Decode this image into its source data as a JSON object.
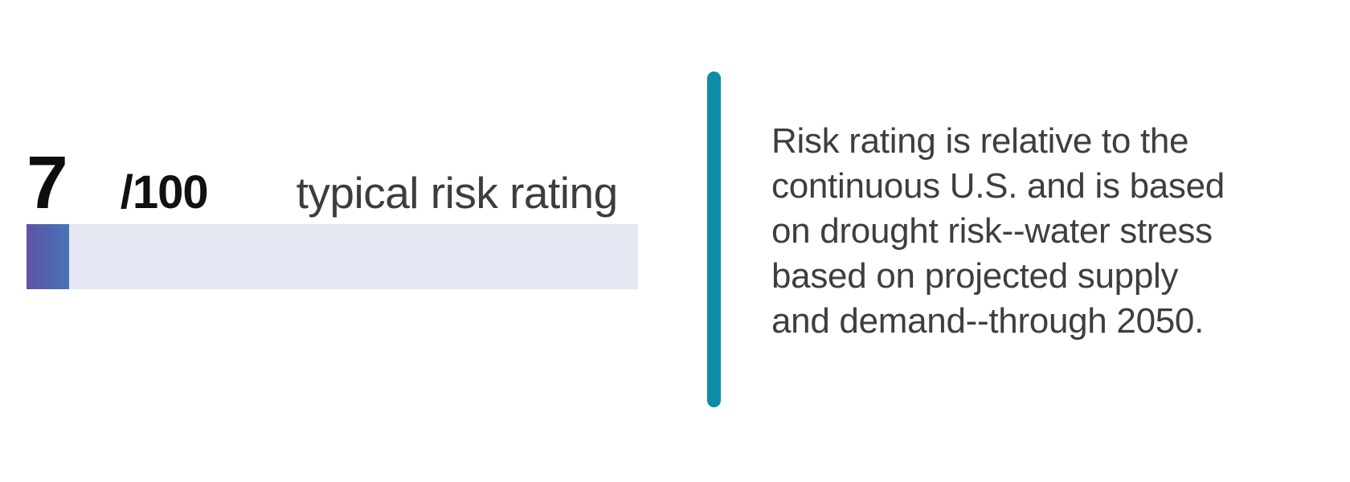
{
  "score_card": {
    "value": "7",
    "denominator": "/100",
    "label": "typical risk rating",
    "progress_percent": 7,
    "bar": {
      "track_color": "#e4e6f2",
      "fill_gradient_start": "#5e53a7",
      "fill_gradient_end": "#4674b6"
    },
    "value_color": "#0d0d0d",
    "label_color": "#3d3d3d"
  },
  "divider": {
    "color": "#0e8ca8"
  },
  "description": {
    "color": "#3e3e42",
    "text": "Risk rating is relative to the continuous U.S. and is based on drought risk--water stress based on projected supply and demand--through 2050.",
    "lines": [
      "Risk rating is relative to the",
      "continuous U.S. and is based",
      "on drought risk--water stress",
      "based on projected supply",
      "and demand--through 2050."
    ]
  }
}
